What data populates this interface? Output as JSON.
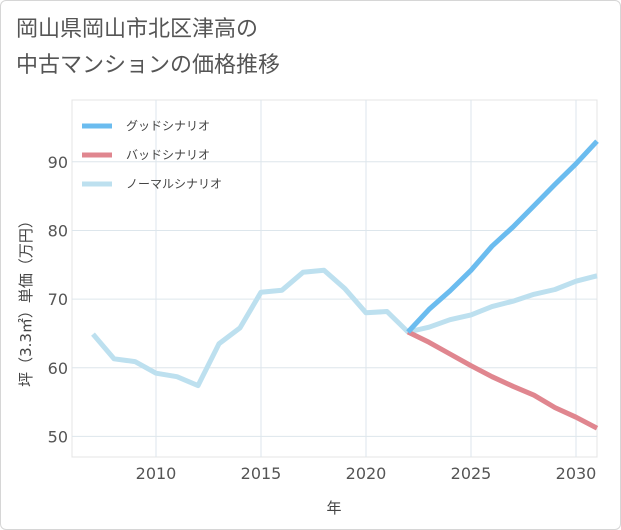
{
  "chart_data": {
    "type": "line",
    "title_line1": "岡山県岡山市北区津高の",
    "title_line2": "中古マンションの価格推移",
    "xlabel": "年",
    "ylabel": "坪（3.3㎡）単価（万円）",
    "xlim": [
      2006,
      2031
    ],
    "ylim": [
      47,
      99
    ],
    "xticks": [
      2010,
      2015,
      2020,
      2025,
      2030
    ],
    "yticks": [
      50,
      60,
      70,
      80,
      90
    ],
    "grid": true,
    "legend_position": "top-left",
    "series": [
      {
        "name": "グッドシナリオ",
        "color": "#6bbcef",
        "x": [
          2022,
          2023,
          2024,
          2025,
          2026,
          2027,
          2028,
          2029,
          2030,
          2031
        ],
        "values": [
          65.2,
          68.5,
          71.2,
          74.2,
          77.7,
          80.5,
          83.6,
          86.7,
          89.7,
          93.0
        ]
      },
      {
        "name": "バッドシナリオ",
        "color": "#e0868f",
        "x": [
          2022,
          2023,
          2024,
          2025,
          2026,
          2027,
          2028,
          2029,
          2030,
          2031
        ],
        "values": [
          65.2,
          63.7,
          62.0,
          60.3,
          58.7,
          57.3,
          56.0,
          54.2,
          52.8,
          51.2
        ]
      },
      {
        "name": "ノーマルシナリオ",
        "color": "#bde0ef",
        "x": [
          2007,
          2008,
          2009,
          2010,
          2011,
          2012,
          2013,
          2014,
          2015,
          2016,
          2017,
          2018,
          2019,
          2020,
          2021,
          2022,
          2023,
          2024,
          2025,
          2026,
          2027,
          2028,
          2029,
          2030,
          2031
        ],
        "values": [
          64.9,
          61.3,
          60.9,
          59.2,
          58.7,
          57.4,
          63.5,
          65.8,
          71.0,
          71.3,
          73.9,
          74.2,
          71.5,
          68.0,
          68.2,
          65.2,
          65.9,
          67.0,
          67.7,
          68.9,
          69.7,
          70.7,
          71.4,
          72.6,
          73.4
        ]
      }
    ]
  }
}
